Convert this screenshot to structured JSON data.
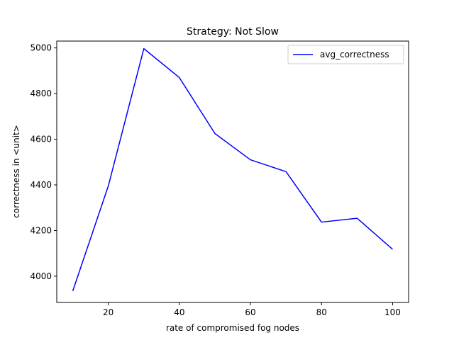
{
  "chart_data": {
    "type": "line",
    "title": "Strategy: Not Slow",
    "xlabel": "rate of compromised fog nodes",
    "ylabel": "correctness in <unit>",
    "xlim": [
      5.5,
      104.5
    ],
    "ylim": [
      3885,
      5030
    ],
    "xticks": [
      20,
      40,
      60,
      80,
      100
    ],
    "yticks": [
      4000,
      4200,
      4400,
      4600,
      4800,
      5000
    ],
    "grid": false,
    "legend_position": "top-right",
    "series": [
      {
        "name": "avg_correctness",
        "color": "#0000ff",
        "x": [
          10,
          20,
          30,
          40,
          50,
          60,
          70,
          80,
          90,
          100
        ],
        "y": [
          3935,
          4395,
          4997,
          4870,
          4625,
          4510,
          4458,
          4237,
          4254,
          4118
        ]
      }
    ]
  }
}
